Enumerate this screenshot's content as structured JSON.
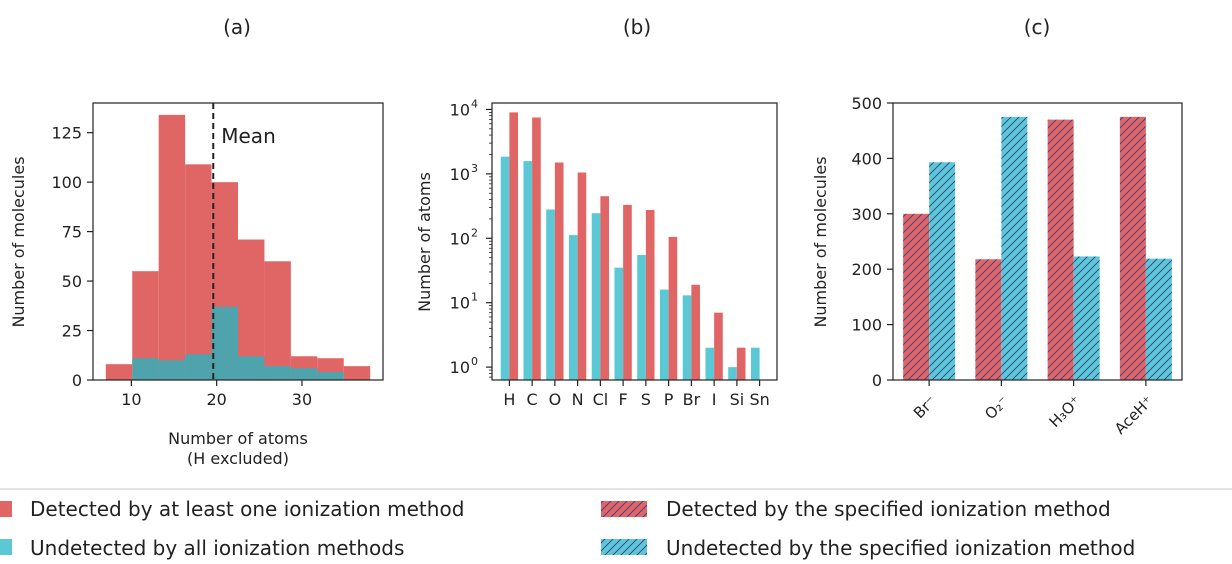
{
  "panel_labels": [
    "(a)",
    "(b)",
    "(c)"
  ],
  "colors": {
    "detected": "#e06666",
    "undetected": "#5bc8d6",
    "overlap": "#4fa3ac",
    "hatch": "#3a3a8c"
  },
  "legend": {
    "left": [
      {
        "key": "detected",
        "label": "Detected by at least one ionization method"
      },
      {
        "key": "undetected",
        "label": "Undetected by all ionization methods"
      }
    ],
    "right": [
      {
        "key": "detected",
        "label": "Detected by the specified ionization method"
      },
      {
        "key": "undetected",
        "label": "Undetected by the specified ionization method"
      }
    ]
  },
  "chart_data": [
    {
      "type": "histogram",
      "xlabel": "Number of atoms",
      "xlabel2": "(H excluded)",
      "ylabel": "Number of molecules",
      "xlim": [
        5.5,
        39.5
      ],
      "ylim": [
        0,
        140
      ],
      "xticks": [
        10,
        20,
        30
      ],
      "yticks": [
        0,
        25,
        50,
        75,
        100,
        125
      ],
      "bin_edges": [
        7,
        10.1,
        13.2,
        16.3,
        19.4,
        22.5,
        25.6,
        28.7,
        31.8,
        34.9,
        38
      ],
      "series": [
        {
          "key": "detected",
          "values": [
            8,
            55,
            134,
            109,
            100,
            71,
            60,
            12,
            11,
            7
          ]
        },
        {
          "key": "undetected",
          "values": [
            0,
            11,
            10,
            13,
            37,
            12,
            7,
            6,
            4,
            0
          ]
        }
      ],
      "mean_line": {
        "x": 19.6,
        "label": "Mean"
      }
    },
    {
      "type": "bar",
      "ylabel": "Number of atoms",
      "yscale": "log",
      "ylim_exp": [
        -0.2,
        4.1
      ],
      "yticks": [
        "10",
        "10",
        "10",
        "10",
        "10"
      ],
      "yticks_exp": [
        "0",
        "1",
        "2",
        "3",
        "4"
      ],
      "categories": [
        "H",
        "C",
        "O",
        "N",
        "Cl",
        "F",
        "S",
        "P",
        "Br",
        "I",
        "Si",
        "Sn"
      ],
      "series": [
        {
          "key": "undetected",
          "values": [
            1850,
            1580,
            280,
            112,
            245,
            35,
            55,
            16,
            13,
            2,
            1,
            2
          ]
        },
        {
          "key": "detected",
          "values": [
            9000,
            7500,
            1500,
            1050,
            450,
            330,
            275,
            105,
            19,
            7,
            2,
            0
          ]
        }
      ]
    },
    {
      "type": "bar",
      "ylabel": "Number of molecules",
      "ylim": [
        0,
        500
      ],
      "yticks": [
        0,
        100,
        200,
        300,
        400,
        500
      ],
      "categories": [
        "Br⁻",
        "O₂⁻",
        "H₃O⁺",
        "AceH⁺"
      ],
      "hatched": true,
      "series": [
        {
          "key": "detected",
          "values": [
            300,
            218,
            470,
            475
          ]
        },
        {
          "key": "undetected",
          "values": [
            393,
            475,
            223,
            219
          ]
        }
      ]
    }
  ]
}
